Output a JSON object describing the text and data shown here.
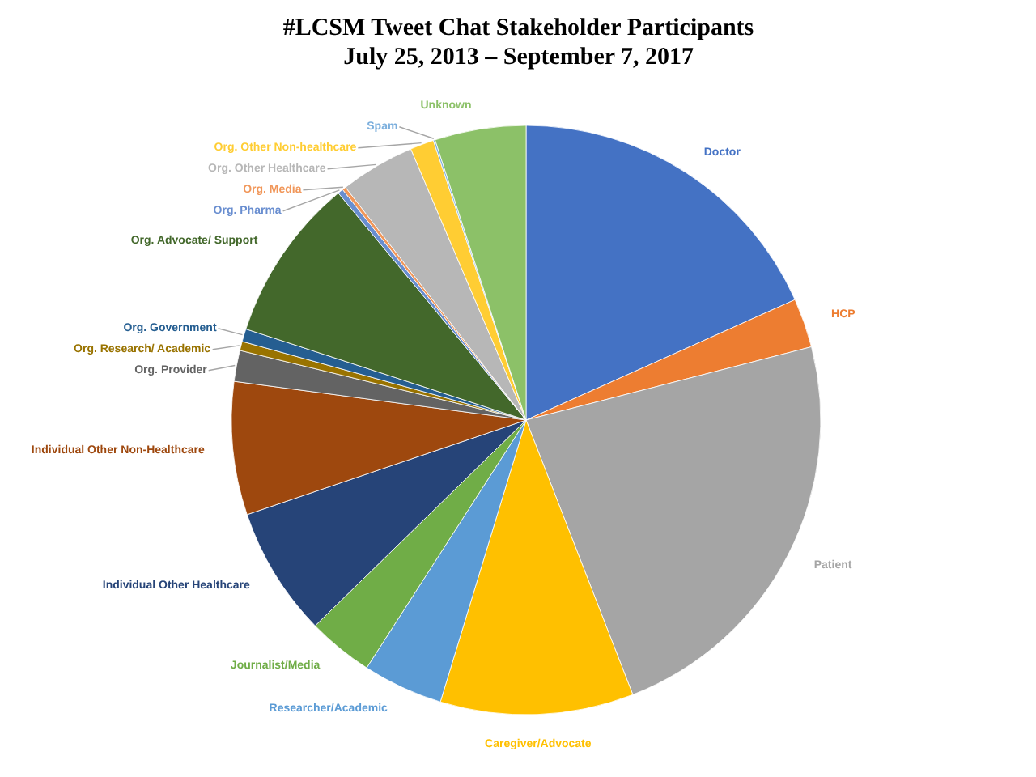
{
  "chart_data": {
    "type": "pie",
    "title": "#LCSM Tweet Chat Stakeholder Participants",
    "subtitle": "July 25, 2013 – September 7, 2017",
    "categories": [
      "Doctor",
      "HCP",
      "Patient",
      "Caregiver/Advocate",
      "Researcher/Academic",
      "Journalist/Media",
      "Individual Other Healthcare",
      "Individual Other Non-Healthcare",
      "Org. Provider",
      "Org. Research/ Academic",
      "Org. Government",
      "Org. Advocate/ Support",
      "Org. Pharma",
      "Org. Media",
      "Org. Other Healthcare",
      "Org. Other Non-healthcare",
      "Spam",
      "Unknown"
    ],
    "values": [
      18.3,
      2.7,
      23.1,
      10.6,
      4.4,
      3.6,
      7.1,
      7.3,
      1.7,
      0.5,
      0.7,
      9.0,
      0.3,
      0.2,
      4.1,
      1.3,
      0.1,
      5.0
    ],
    "colors": [
      "#4472c4",
      "#ed7d31",
      "#a5a5a5",
      "#ffc000",
      "#5b9bd5",
      "#70ad47",
      "#264478",
      "#9e480e",
      "#636363",
      "#997300",
      "#255e91",
      "#43682b",
      "#698ed0",
      "#f1975a",
      "#b7b7b7",
      "#ffcd33",
      "#7cafdd",
      "#8cc168"
    ]
  }
}
